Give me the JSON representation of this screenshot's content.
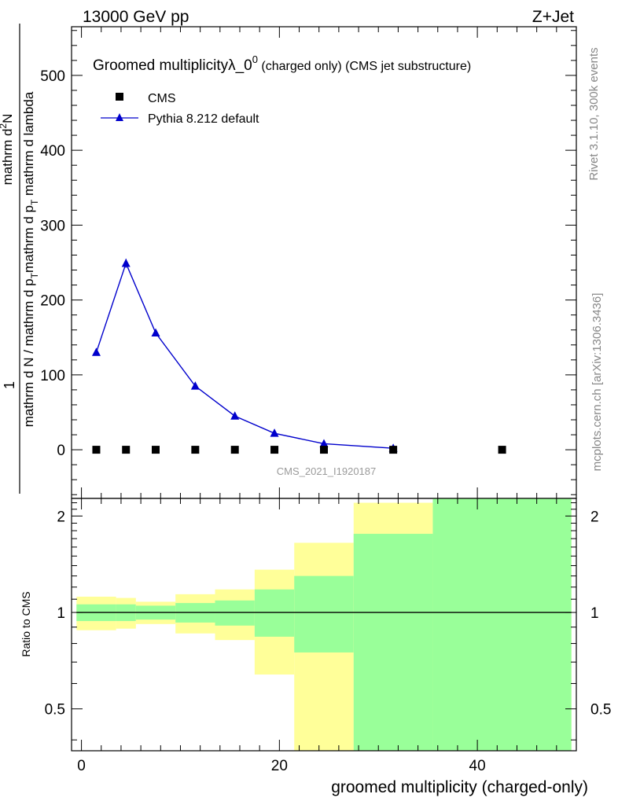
{
  "header": {
    "left": "13000 GeV pp",
    "right": "Z+Jet"
  },
  "side": {
    "rivet": "Rivet 3.1.10,  300k events",
    "mcplots": "mcplots.cern.ch [arXiv:1306.3436]"
  },
  "colors": {
    "mc_line": "#0000cc",
    "band_inner": "#99ff99",
    "band_outer": "#ffff99",
    "data_marker": "#000000"
  },
  "chart_data": {
    "type": "scatter",
    "title": "Groomed multiplicityλ_0",
    "title_sup": "0",
    "title_suffix": " (charged only) (CMS jet substructure)",
    "watermark": "CMS_2021_I1920187",
    "xlabel": "groomed multiplicity (charged-only)",
    "ylabel_top": {
      "prefix": "1",
      "main": "mathrm d N / mathrm d p",
      "sub1": "T",
      "main2": "mathrm d p",
      "sub2": "T",
      "main3": " mathrm d lambda",
      "num": "mathrm d",
      "num_sup": "2",
      "num_end": "N"
    },
    "xlim": [
      -1,
      50
    ],
    "top": {
      "ylim": [
        -65,
        565
      ],
      "yticks": [
        0,
        100,
        200,
        300,
        400,
        500
      ],
      "ytick_labels": [
        "0",
        "100",
        "200",
        "300",
        "400",
        "500"
      ]
    },
    "series": [
      {
        "name": "CMS",
        "style": "square-marker",
        "x": [
          1.5,
          4.5,
          7.5,
          11.5,
          15.5,
          19.5,
          24.5,
          31.5,
          42.5
        ],
        "y": [
          0,
          0,
          0,
          0,
          0,
          0,
          0,
          0,
          0
        ]
      },
      {
        "name": "Pythia 8.212 default",
        "style": "line-triangle",
        "x": [
          1.5,
          4.5,
          7.5,
          11.5,
          15.5,
          19.5,
          24.5,
          31.5
        ],
        "y": [
          130,
          249,
          156,
          85,
          45,
          22,
          8,
          2
        ],
        "yerr": [
          2,
          6,
          3,
          2,
          1,
          1,
          0.5,
          0.3
        ]
      }
    ],
    "ratio": {
      "ylabel": "Ratio to CMS",
      "ylim": [
        0.37,
        2.27
      ],
      "yticks": [
        0.5,
        1,
        2
      ],
      "ytick_labels": [
        "0.5",
        "1",
        "2"
      ],
      "bins": [
        {
          "lo": -0.5,
          "hi": 3.5,
          "inner": [
            0.94,
            1.06
          ],
          "outer": [
            0.88,
            1.12
          ]
        },
        {
          "lo": 3.5,
          "hi": 5.5,
          "inner": [
            0.94,
            1.06
          ],
          "outer": [
            0.89,
            1.11
          ]
        },
        {
          "lo": 5.5,
          "hi": 9.5,
          "inner": [
            0.95,
            1.05
          ],
          "outer": [
            0.92,
            1.08
          ]
        },
        {
          "lo": 9.5,
          "hi": 13.5,
          "inner": [
            0.93,
            1.07
          ],
          "outer": [
            0.86,
            1.14
          ]
        },
        {
          "lo": 13.5,
          "hi": 17.5,
          "inner": [
            0.91,
            1.09
          ],
          "outer": [
            0.82,
            1.18
          ]
        },
        {
          "lo": 17.5,
          "hi": 21.5,
          "inner": [
            0.84,
            1.18
          ],
          "outer": [
            0.64,
            1.36
          ]
        },
        {
          "lo": 21.5,
          "hi": 27.5,
          "inner": [
            0.75,
            1.3
          ],
          "outer": [
            0.35,
            1.65
          ]
        },
        {
          "lo": 27.5,
          "hi": 35.5,
          "inner": [
            0.35,
            1.76
          ],
          "outer": [
            0.35,
            2.2
          ]
        },
        {
          "lo": 35.5,
          "hi": 49.5,
          "inner": [
            0.35,
            2.3
          ],
          "outer": [
            0.35,
            2.3
          ]
        }
      ]
    },
    "xticks": [
      0,
      20,
      40
    ],
    "xtick_labels": [
      "0",
      "20",
      "40"
    ]
  }
}
